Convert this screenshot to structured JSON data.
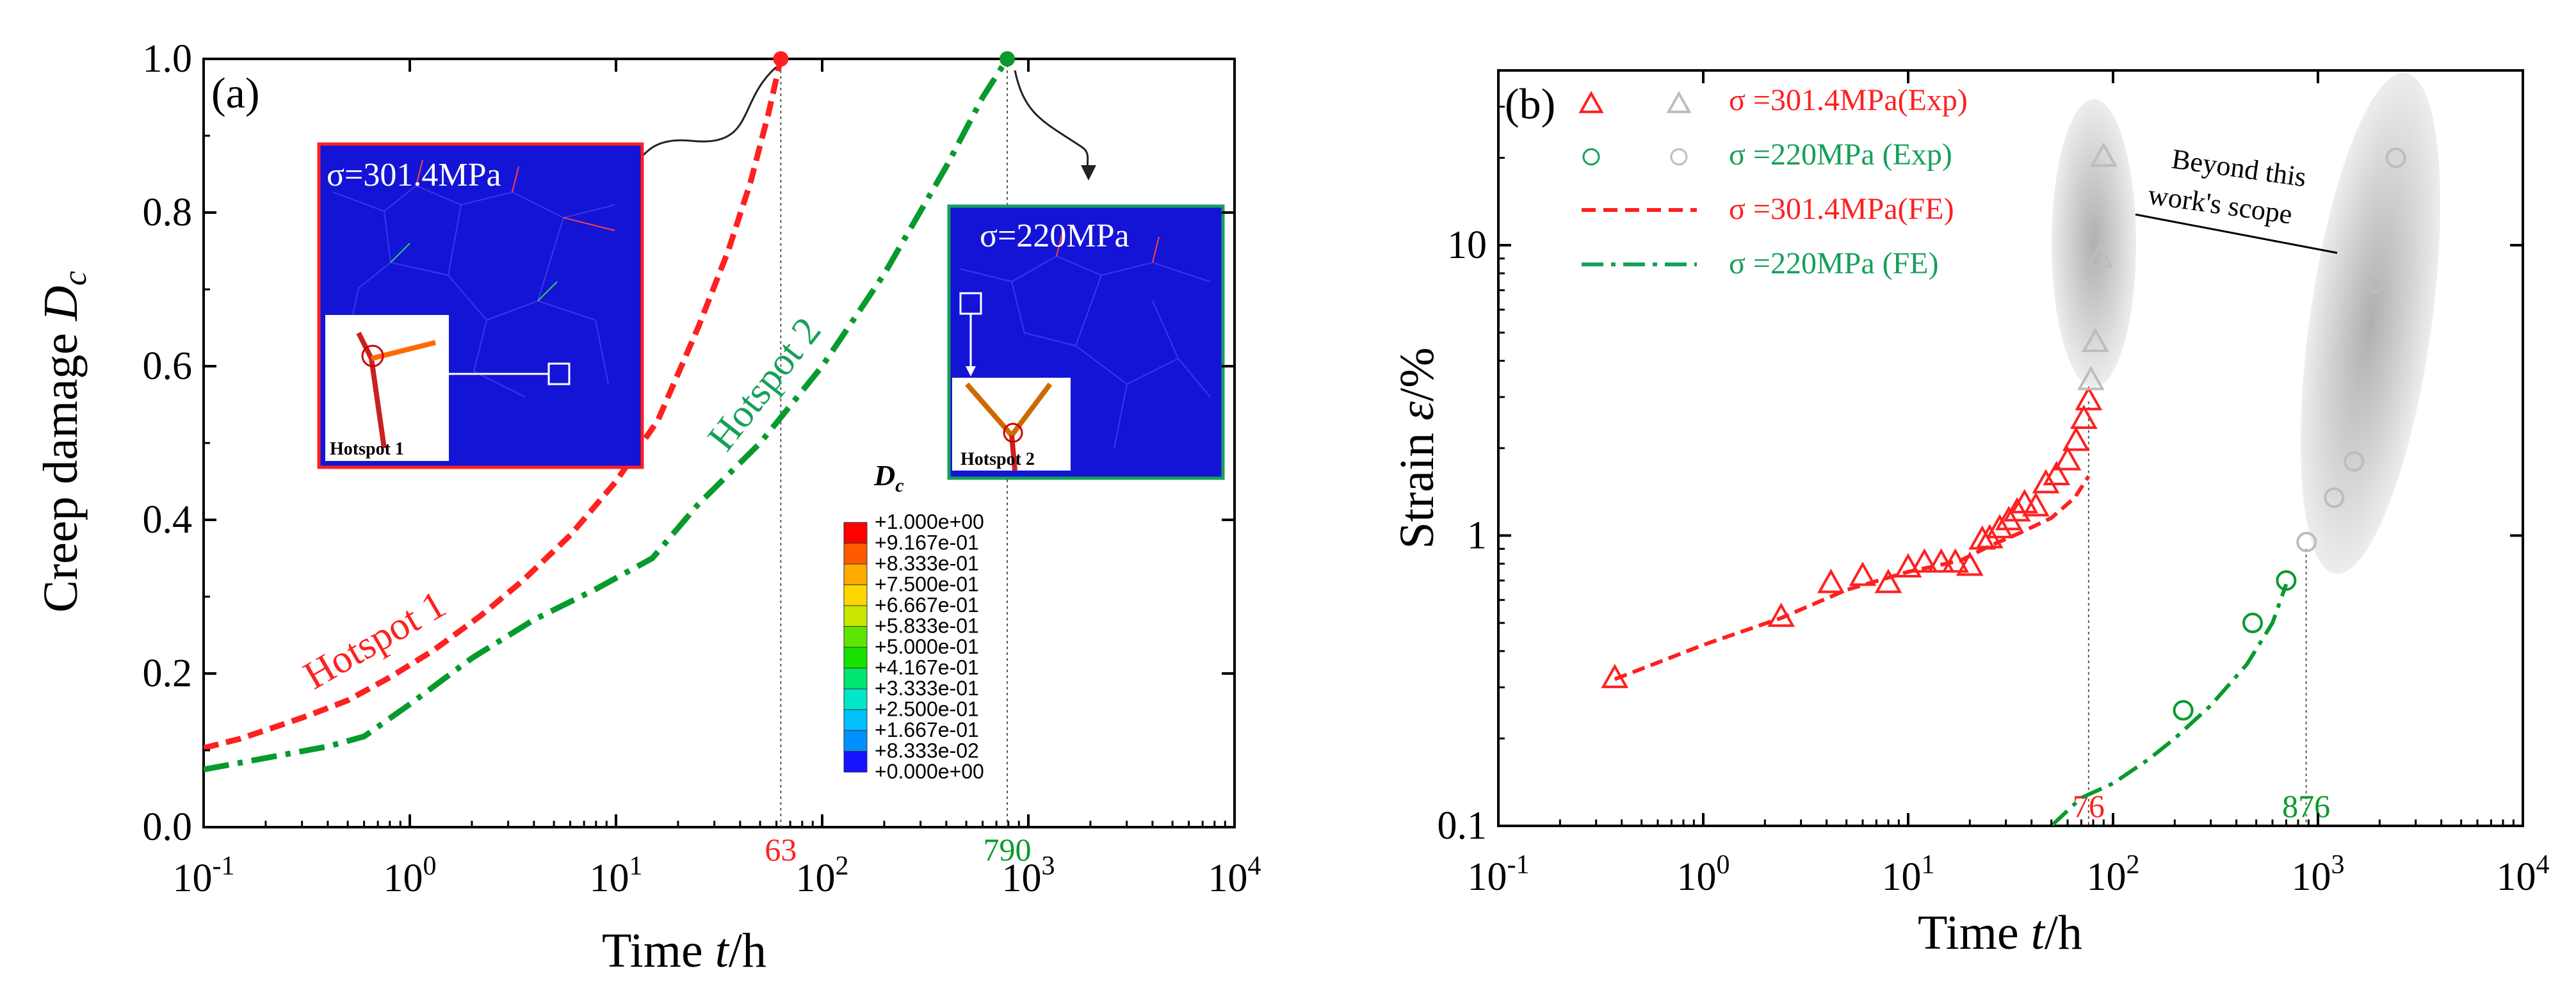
{
  "colors": {
    "red": "#ff2020",
    "green": "#079a2c",
    "green_text": "#16a05a",
    "mesh_bg": "#1414d6",
    "gray_marker": "#bdbdbd",
    "ellipse": "#c8c8c8"
  },
  "chart_data": [
    {
      "type": "line",
      "panel_label": "(a)",
      "xlabel": "Time  t/h",
      "ylabel": "Creep damage  Dc",
      "x_scale": "log",
      "xlim": [
        0.1,
        10000
      ],
      "ylim": [
        0.0,
        1.0
      ],
      "x_ticks": [
        "10-1",
        "100",
        "101",
        "102",
        "103",
        "104"
      ],
      "y_ticks": [
        "0.0",
        "0.2",
        "0.4",
        "0.6",
        "0.8",
        "1.0"
      ],
      "grid": false,
      "series": [
        {
          "name": "Hotspot 1",
          "color": "#ff2020",
          "style": "dashed",
          "x": [
            0.1,
            0.15,
            0.22,
            0.32,
            0.5,
            0.8,
            1.3,
            2.2,
            3.5,
            6,
            10,
            16,
            25,
            35,
            45,
            55,
            63
          ],
          "y": [
            0.103,
            0.115,
            0.13,
            0.145,
            0.165,
            0.195,
            0.23,
            0.275,
            0.32,
            0.38,
            0.45,
            0.53,
            0.65,
            0.75,
            0.84,
            0.93,
            1.0
          ]
        },
        {
          "name": "Hotspot 2",
          "color": "#079a2c",
          "style": "dashdot",
          "x": [
            0.1,
            0.2,
            0.4,
            0.6,
            1.0,
            2.0,
            4.0,
            8,
            15,
            25,
            50,
            100,
            200,
            400,
            600,
            790
          ],
          "y": [
            0.075,
            0.09,
            0.105,
            0.118,
            0.16,
            0.22,
            0.27,
            0.31,
            0.35,
            0.42,
            0.5,
            0.6,
            0.72,
            0.86,
            0.95,
            1.0
          ]
        }
      ],
      "vlines": [
        {
          "x": 63,
          "label": "63",
          "color": "#ff2020"
        },
        {
          "x": 790,
          "label": "790",
          "color": "#079a2c"
        }
      ],
      "annotations": [
        {
          "text": "Hotspot 1",
          "color": "#ff2020"
        },
        {
          "text": "Hotspot 2",
          "color": "#16a05a"
        }
      ],
      "insets": [
        {
          "title": "σ=301.4MPa",
          "hotspot_label": "Hotspot 1",
          "border": "#ff2020"
        },
        {
          "title": "σ=220MPa",
          "hotspot_label": "Hotspot 2",
          "border": "#16a05a"
        }
      ],
      "colorbar": {
        "title": "Dc",
        "labels": [
          "+1.000e+00",
          "+9.167e-01",
          "+8.333e-01",
          "+7.500e-01",
          "+6.667e-01",
          "+5.833e-01",
          "+5.000e-01",
          "+4.167e-01",
          "+3.333e-01",
          "+2.500e-01",
          "+1.667e-01",
          "+8.333e-02",
          "+0.000e+00"
        ],
        "colors": [
          "#ff0000",
          "#ff5a00",
          "#ffaa00",
          "#ffd600",
          "#c8e600",
          "#5ee600",
          "#18e000",
          "#00e66e",
          "#00e6c8",
          "#00c0ff",
          "#0090ff",
          "#1414ff"
        ]
      }
    },
    {
      "type": "scatter",
      "panel_label": "(b)",
      "xlabel": "Time  t/h",
      "ylabel": "Strain ε/%",
      "x_scale": "log",
      "y_scale": "log",
      "xlim": [
        0.1,
        10000
      ],
      "ylim": [
        0.1,
        40
      ],
      "x_ticks": [
        "10-1",
        "100",
        "101",
        "102",
        "103",
        "104"
      ],
      "y_ticks": [
        "0.1",
        "1",
        "10"
      ],
      "grid": false,
      "legend_position": "top-left",
      "legend": [
        {
          "label": "σ =301.4MPa(Exp)",
          "color": "#ff2020",
          "marker": "triangle"
        },
        {
          "label": "σ =220MPa   (Exp)",
          "color": "#16a05a",
          "marker": "circle"
        },
        {
          "label": "σ =301.4MPa(FE)",
          "color": "#ff2020",
          "line": "dashed"
        },
        {
          "label": "σ =220MPa   (FE)",
          "color": "#16a05a",
          "line": "dashdot"
        }
      ],
      "series": [
        {
          "name": "σ =301.4MPa(Exp)",
          "color": "#ff2020",
          "marker": "triangle",
          "x": [
            0.37,
            2.4,
            4.2,
            6,
            8,
            10,
            12,
            14.5,
            17,
            20,
            23,
            25,
            28,
            31,
            34,
            37,
            42,
            47,
            53,
            60,
            66,
            72,
            76
          ],
          "y": [
            0.32,
            0.52,
            0.68,
            0.72,
            0.68,
            0.77,
            0.8,
            0.8,
            0.8,
            0.78,
            0.96,
            0.97,
            1.05,
            1.12,
            1.2,
            1.28,
            1.25,
            1.5,
            1.6,
            1.8,
            2.1,
            2.5,
            2.9
          ]
        },
        {
          "name": "σ =220MPa   (Exp)",
          "color": "#079a2c",
          "marker": "circle",
          "x": [
            220,
            480,
            700
          ],
          "y": [
            0.25,
            0.5,
            0.7
          ]
        },
        {
          "name": "σ =301.4MPa(FE)",
          "color": "#ff2020",
          "line": "dashed",
          "x": [
            0.37,
            1,
            2.4,
            5,
            10,
            18,
            25,
            35,
            50,
            65,
            76
          ],
          "y": [
            0.32,
            0.42,
            0.52,
            0.65,
            0.75,
            0.82,
            0.92,
            1.02,
            1.15,
            1.35,
            1.6
          ]
        },
        {
          "name": "σ =220MPa   (FE)",
          "color": "#079a2c",
          "line": "dashdot",
          "x": [
            50,
            70,
            100,
            150,
            200,
            300,
            450,
            600,
            700
          ],
          "y": [
            0.1,
            0.125,
            0.14,
            0.17,
            0.2,
            0.26,
            0.36,
            0.5,
            0.68
          ]
        },
        {
          "name": "Beyond this work's scope (301.4MPa)",
          "color": "#bdbdbd",
          "marker": "triangle",
          "x": [
            78,
            82,
            86,
            90
          ],
          "y": [
            3.4,
            4.6,
            9.0,
            20.0
          ]
        },
        {
          "name": "Beyond this work's scope (220MPa)",
          "color": "#bdbdbd",
          "marker": "circle",
          "x": [
            880,
            1200,
            1500,
            1900,
            2400
          ],
          "y": [
            0.95,
            1.35,
            1.8,
            7.4,
            20.0
          ]
        }
      ],
      "vlines": [
        {
          "x": 76,
          "label": "76",
          "color": "#ff2020"
        },
        {
          "x": 876,
          "label": "876",
          "color": "#079a2c"
        }
      ],
      "annotations": [
        {
          "text": "Beyond this",
          "color": "#000000"
        },
        {
          "text": "work's scope",
          "color": "#000000"
        }
      ]
    }
  ]
}
